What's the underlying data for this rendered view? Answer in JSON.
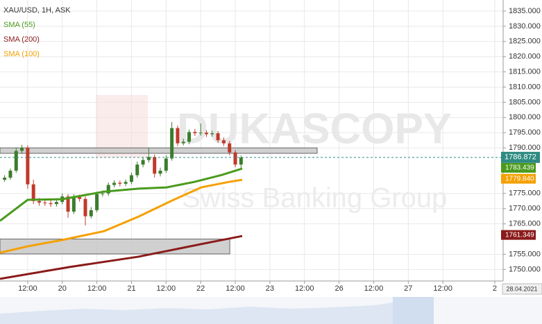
{
  "chart_data": {
    "type": "candlestick",
    "title": "XAU/USD, 1H, ASK",
    "watermark": "DUKASCOPY",
    "watermark_subtitle": "Swiss Banking Group",
    "date_label": "28.04.2021",
    "grid": true,
    "up_color": "#3a7d2c",
    "down_color": "#c0392b",
    "xlim": [
      -21.6,
      152.9
    ],
    "xticks": [
      {
        "value": -12,
        "label": "12:00"
      },
      {
        "value": 0,
        "label": "20"
      },
      {
        "value": 12,
        "label": "12:00"
      },
      {
        "value": 24,
        "label": "21"
      },
      {
        "value": 36,
        "label": "12:00"
      },
      {
        "value": 48,
        "label": "22"
      },
      {
        "value": 60,
        "label": "12:00"
      },
      {
        "value": 72,
        "label": "23"
      },
      {
        "value": 84,
        "label": "12:00"
      },
      {
        "value": 96,
        "label": "26"
      },
      {
        "value": 108,
        "label": "12:00"
      },
      {
        "value": 120,
        "label": "27"
      },
      {
        "value": 132,
        "label": "12:00"
      },
      {
        "value": 150,
        "label": "2"
      }
    ],
    "ylim": [
      1746.2,
      1838.65
    ],
    "yticks": [
      {
        "value": 1750,
        "label": "1750.000"
      },
      {
        "value": 1755,
        "label": "1755.000"
      },
      {
        "value": 1765,
        "label": "1765.000"
      },
      {
        "value": 1770,
        "label": "1770.000"
      },
      {
        "value": 1775,
        "label": "1775.000"
      },
      {
        "value": 1790,
        "label": "1790.000"
      },
      {
        "value": 1795,
        "label": "1795.000"
      },
      {
        "value": 1800,
        "label": "1800.000"
      },
      {
        "value": 1805,
        "label": "1805.000"
      },
      {
        "value": 1810,
        "label": "1810.000"
      },
      {
        "value": 1815,
        "label": "1815.000"
      },
      {
        "value": 1820,
        "label": "1820.000"
      },
      {
        "value": 1825,
        "label": "1825.000"
      },
      {
        "value": 1830,
        "label": "1830.000"
      },
      {
        "value": 1835,
        "label": "1835.000"
      }
    ],
    "current_price": {
      "value": 1786.872,
      "label": "1786.872",
      "color": "#2e8b82"
    },
    "x": [
      -20,
      -18,
      -16,
      -14,
      -12,
      -10,
      -8,
      -6,
      -4,
      -2,
      0,
      2,
      4,
      6,
      8,
      10,
      12,
      14,
      16,
      18,
      20,
      22,
      24,
      26,
      28,
      30,
      32,
      34,
      36,
      38,
      40,
      42,
      44,
      46,
      48,
      50,
      52,
      54,
      56,
      58,
      60,
      62
    ],
    "open": [
      1779.5,
      1780.2,
      1782.5,
      1789.0,
      1790.0,
      1778.0,
      1772.5,
      1772.0,
      1771.8,
      1771.5,
      1772.2,
      1774.0,
      1769.0,
      1773.8,
      1773.2,
      1767.5,
      1769.5,
      1774.8,
      1775.0,
      1777.8,
      1778.5,
      1778.2,
      1778.8,
      1781.0,
      1784.5,
      1786.0,
      1787.0,
      1781.5,
      1782.5,
      1786.5,
      1796.5,
      1791.5,
      1792.0,
      1795.2,
      1794.8,
      1795.0,
      1794.5,
      1794.8,
      1792.5,
      1791.5,
      1788.5,
      1784.5
    ],
    "high": [
      1781.0,
      1783.2,
      1790.0,
      1791.0,
      1790.8,
      1779.5,
      1773.5,
      1773.0,
      1772.8,
      1773.2,
      1775.0,
      1774.8,
      1774.8,
      1774.6,
      1774.0,
      1770.5,
      1775.6,
      1776.0,
      1778.6,
      1779.3,
      1779.2,
      1779.6,
      1781.8,
      1785.5,
      1787.0,
      1790.0,
      1787.8,
      1783.5,
      1787.5,
      1798.5,
      1797.3,
      1793.0,
      1796.0,
      1796.2,
      1798.0,
      1795.8,
      1795.6,
      1795.5,
      1793.4,
      1792.3,
      1789.3,
      1787.5
    ],
    "low": [
      1778.8,
      1779.5,
      1781.8,
      1788.0,
      1776.5,
      1771.5,
      1771.0,
      1770.9,
      1770.6,
      1770.7,
      1771.4,
      1767.0,
      1768.2,
      1772.3,
      1764.5,
      1766.8,
      1768.8,
      1774.0,
      1774.2,
      1777.0,
      1777.3,
      1777.4,
      1778.0,
      1780.2,
      1783.6,
      1785.2,
      1780.2,
      1780.6,
      1781.8,
      1785.8,
      1790.6,
      1790.8,
      1791.2,
      1793.9,
      1794.0,
      1793.6,
      1793.7,
      1791.6,
      1790.6,
      1787.6,
      1783.6,
      1783.0
    ],
    "close": [
      1780.2,
      1782.5,
      1789.0,
      1790.0,
      1778.0,
      1772.5,
      1772.0,
      1771.8,
      1771.5,
      1772.2,
      1774.0,
      1769.0,
      1773.8,
      1773.2,
      1767.5,
      1769.5,
      1774.8,
      1775.0,
      1777.8,
      1778.5,
      1778.2,
      1778.8,
      1781.0,
      1784.5,
      1786.0,
      1787.0,
      1781.5,
      1782.5,
      1786.5,
      1796.5,
      1791.5,
      1792.0,
      1795.2,
      1794.8,
      1795.0,
      1794.5,
      1794.8,
      1792.5,
      1791.5,
      1788.5,
      1784.5,
      1786.8
    ],
    "series": [
      {
        "name": "SMA (55)",
        "color": "#4a9a1c",
        "x": [
          -21.6,
          -12,
          0,
          14.5,
          26.5,
          36.2,
          45.8,
          55.4,
          62.4
        ],
        "values": [
          1766.0,
          1772.9,
          1773.1,
          1775.6,
          1776.6,
          1777.0,
          1778.8,
          1781.1,
          1783.2
        ],
        "price_label": {
          "value": 1783.439,
          "label": "1783.439"
        }
      },
      {
        "name": "SMA (200)",
        "color": "#8b1a1a",
        "x": [
          -21.6,
          2.5,
          26.5,
          50.6,
          62.4
        ],
        "values": [
          1746.9,
          1750.8,
          1754.2,
          1758.8,
          1761.0
        ],
        "price_label": {
          "value": 1761.349,
          "label": "1761.349"
        }
      },
      {
        "name": "SMA (100)",
        "color": "#f5a000",
        "x": [
          -21.6,
          -12,
          0,
          14.5,
          26.5,
          38.6,
          48.2,
          57.8,
          62.4
        ],
        "values": [
          1755.5,
          1757.6,
          1759.7,
          1762.6,
          1767.4,
          1772.9,
          1777.0,
          1778.8,
          1779.5
        ],
        "price_label": {
          "value": 1779.84,
          "label": "1779.840"
        }
      }
    ],
    "zones": [
      {
        "x": [
          -21.6,
          88.4
        ],
        "y": [
          1788.2,
          1790.0
        ]
      },
      {
        "x": [
          -21.6,
          58.1
        ],
        "y": [
          1755.1,
          1760.0
        ]
      }
    ]
  }
}
